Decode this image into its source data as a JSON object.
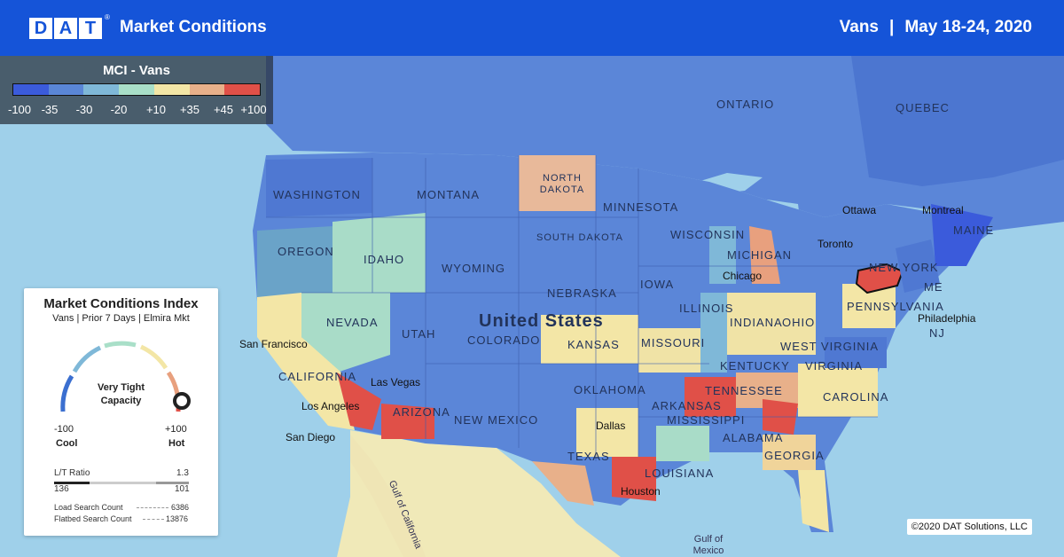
{
  "header": {
    "logo_letters": [
      "D",
      "A",
      "T"
    ],
    "logo_registered": "®",
    "title": "Market Conditions",
    "equipment": "Vans",
    "separator": "|",
    "date_range": "May 18-24, 2020"
  },
  "legend": {
    "title": "MCI - Vans",
    "colors": [
      "#3b5bdb",
      "#5a86d6",
      "#7fb8d8",
      "#a9dfc8",
      "#f3e6a6",
      "#e8b08a",
      "#e05048"
    ],
    "ticks": [
      "-100",
      "-35",
      "-30",
      "-20",
      "+10",
      "+35",
      "+45",
      "+100"
    ]
  },
  "map": {
    "region_labels": [
      "WASHINGTON",
      "OREGON",
      "IDAHO",
      "NEVADA",
      "UTAH",
      "MONTANA",
      "WYOMING",
      "COLORADO",
      "NORTH DAKOTA",
      "SOUTH DAKOTA",
      "NEBRASKA",
      "KANSAS",
      "OKLAHOMA",
      "NEW MEXICO",
      "ARIZONA",
      "TEXAS",
      "MINNESOTA",
      "IOWA",
      "MISSOURI",
      "ARKANSAS",
      "LOUISIANA",
      "MISSISSIPPI",
      "ALABAMA",
      "GEORGIA",
      "TENNESSEE",
      "KENTUCKY",
      "ILLINOIS",
      "INDIANA",
      "OHIO",
      "MICHIGAN",
      "WISCONSIN",
      "PENNSYLVANIA",
      "NEW YORK",
      "VIRGINIA",
      "WEST VIRGINIA",
      "CAROLINA",
      "MAINE",
      "ONTARIO",
      "QUEBEC",
      "CALIFORNIA",
      "United States",
      "NJ",
      "ME"
    ],
    "cities": [
      "San Francisco",
      "Las Vegas",
      "Los Angeles",
      "San Diego",
      "Dallas",
      "Houston",
      "Chicago",
      "Toronto",
      "Ottawa",
      "Montreal",
      "Philadelphia"
    ],
    "water_labels": [
      "Gulf of California",
      "Gulf of Mexico"
    ],
    "highlighted_market": "Elmira"
  },
  "card": {
    "title": "Market Conditions Index",
    "subtitle": "Vans | Prior 7 Days | Elmira Mkt",
    "gauge_status_line1": "Very Tight",
    "gauge_status_line2": "Capacity",
    "gauge_value": 100,
    "min_value": "-100",
    "min_label": "Cool",
    "max_value": "+100",
    "max_label": "Hot",
    "ratio_label": "L/T Ratio",
    "ratio_value": "1.3",
    "loads": "136",
    "trucks": "101",
    "load_search_label": "Load Search Count",
    "load_search_value": "6386",
    "flatbed_search_label": "Flatbed Search Count",
    "flatbed_search_value": "13876"
  },
  "copyright": "©2020 DAT Solutions, LLC"
}
